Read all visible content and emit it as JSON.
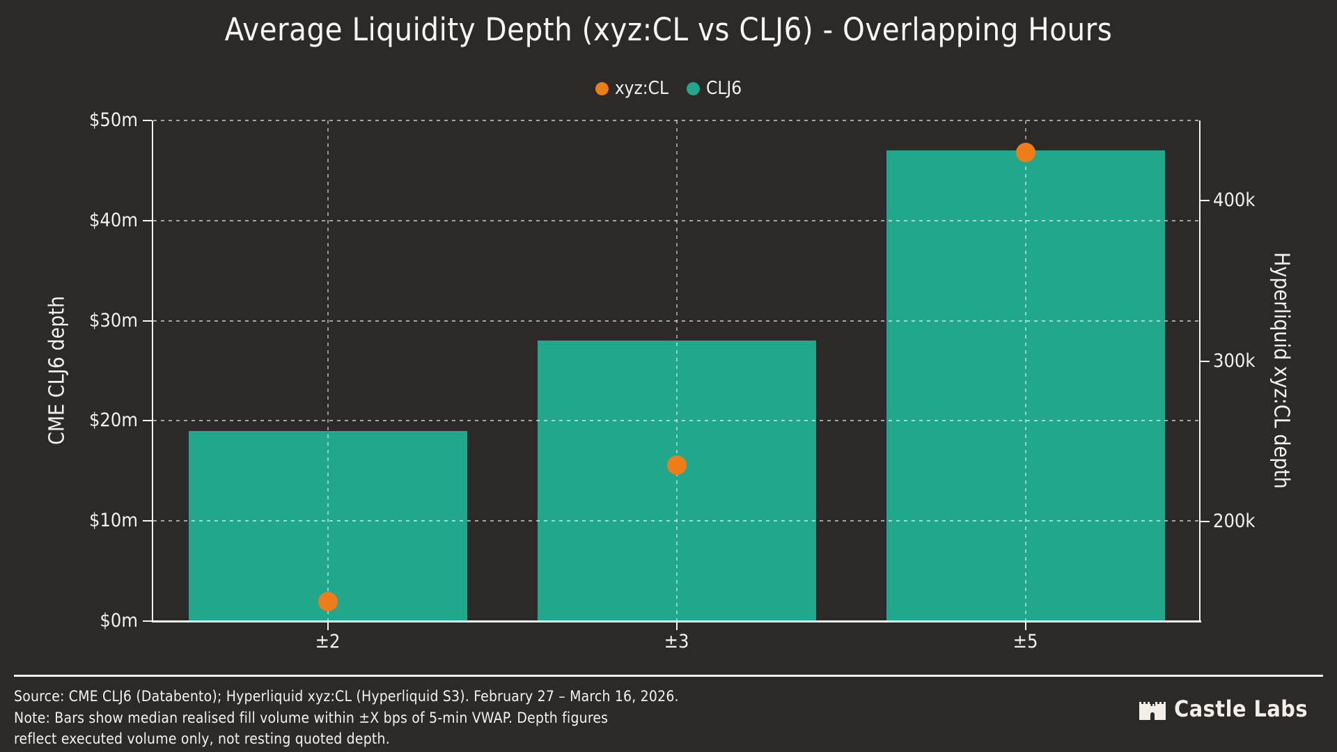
{
  "title": "Average Liquidity Depth (xyz:CL vs CLJ6) - Overlapping Hours",
  "colors": {
    "background": "#2b2a28",
    "bar_teal": "#21a88c",
    "dot_orange": "#ee7d19",
    "text": "#f5f4f0"
  },
  "legend": {
    "items": [
      {
        "label": "xyz:CL",
        "color": "#ee7d19"
      },
      {
        "label": "CLJ6",
        "color": "#21a88c"
      }
    ]
  },
  "chart_data": {
    "type": "bar",
    "categories": [
      "±2",
      "±3",
      "±5"
    ],
    "series": [
      {
        "name": "CLJ6",
        "type": "bar",
        "axis": "left",
        "values": [
          19,
          28,
          47
        ],
        "value_unit": "$m",
        "color": "#21a88c"
      },
      {
        "name": "xyz:CL",
        "type": "scatter",
        "axis": "right",
        "values": [
          150,
          235,
          430
        ],
        "value_unit": "k",
        "color": "#ee7d19"
      }
    ],
    "title": "Average Liquidity Depth (xyz:CL vs CLJ6) - Overlapping Hours",
    "left_axis": {
      "label": "CME CLJ6 depth",
      "tick_values": [
        0,
        10,
        20,
        30,
        40,
        50
      ],
      "tick_labels": [
        "$0m",
        "$10m",
        "$20m",
        "$30m",
        "$40m",
        "$50m"
      ],
      "range": [
        0,
        50
      ]
    },
    "right_axis": {
      "label": "Hyperliquid xyz:CL depth",
      "tick_values": [
        200,
        300,
        400
      ],
      "tick_labels": [
        "200k",
        "300k",
        "400k"
      ],
      "range": [
        138,
        450
      ]
    },
    "x_axis": {
      "tick_labels": [
        "±2",
        "±3",
        "±5"
      ]
    },
    "grid": "dashed, both axes",
    "legend_position": "top-center"
  },
  "footer": {
    "source_line": "Source: CME CLJ6 (Databento); Hyperliquid xyz:CL (Hyperliquid S3). February 27 – March 16, 2026.",
    "note_line_1": "Note: Bars show median realised fill volume within ±X bps of 5-min VWAP. Depth figures",
    "note_line_2": "reflect executed volume only, not resting quoted depth.",
    "brand_name": "Castle Labs"
  }
}
